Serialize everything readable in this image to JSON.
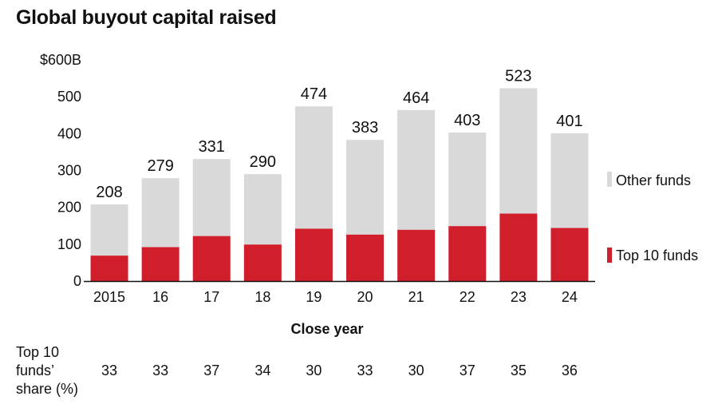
{
  "title": "Global buyout capital raised",
  "chart_data": {
    "type": "bar",
    "stacked": true,
    "categories": [
      "2015",
      "16",
      "17",
      "18",
      "19",
      "20",
      "21",
      "22",
      "23",
      "24"
    ],
    "totals": [
      208,
      279,
      331,
      290,
      474,
      383,
      464,
      403,
      523,
      401
    ],
    "share_percent": [
      33,
      33,
      37,
      34,
      30,
      33,
      30,
      37,
      35,
      36
    ],
    "series": [
      {
        "name": "Top 10 funds",
        "color": "#d01f2a",
        "values": [
          69,
          92,
          122,
          99,
          142,
          126,
          139,
          149,
          183,
          144
        ]
      },
      {
        "name": "Other funds",
        "color": "#d9d9d9",
        "values": [
          139,
          187,
          209,
          191,
          332,
          257,
          325,
          254,
          340,
          257
        ]
      }
    ],
    "ylim": [
      0,
      600
    ],
    "yticks": [
      "0",
      "100",
      "200",
      "300",
      "400",
      "500",
      "$600B"
    ],
    "xlabel": "Close year",
    "ylabel": "",
    "legend_position": "right",
    "grid": false
  },
  "share_row": {
    "label_lines": [
      "Top 10",
      "funds’",
      "share (%)"
    ]
  }
}
